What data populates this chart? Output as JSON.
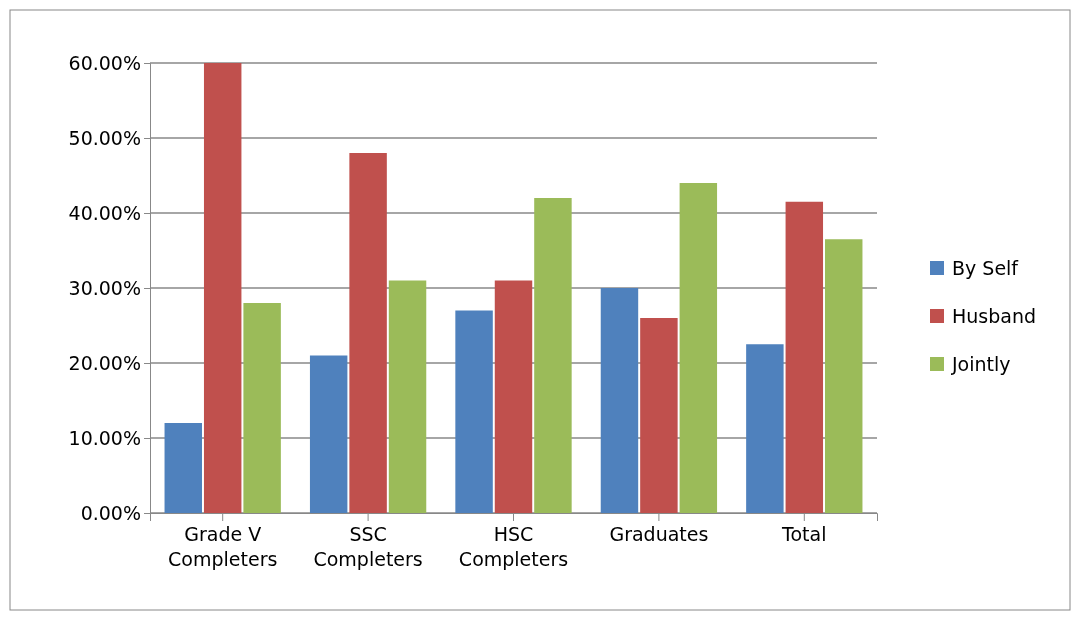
{
  "chart_data": {
    "type": "bar",
    "categories": [
      "Grade V Completers",
      "SSC Completers",
      "HSC Completers",
      "Graduates",
      "Total"
    ],
    "series": [
      {
        "name": "By Self",
        "color": "#4f81bd",
        "values": [
          12,
          21,
          27,
          30,
          22.5
        ]
      },
      {
        "name": "Husband",
        "color": "#c0504d",
        "values": [
          60,
          48,
          31,
          26,
          41.5
        ]
      },
      {
        "name": "Jointly",
        "color": "#9bbb59",
        "values": [
          28,
          31,
          42,
          44,
          36.5
        ]
      }
    ],
    "ylim": [
      0,
      60
    ],
    "yticks": [
      {
        "value": 0,
        "label": "0.00%"
      },
      {
        "value": 10,
        "label": "10.00%"
      },
      {
        "value": 20,
        "label": "20.00%"
      },
      {
        "value": 30,
        "label": "30.00%"
      },
      {
        "value": 40,
        "label": "40.00%"
      },
      {
        "value": 50,
        "label": "50.00%"
      },
      {
        "value": 60,
        "label": "60.00%"
      }
    ],
    "grid": "y",
    "legend": "right"
  }
}
